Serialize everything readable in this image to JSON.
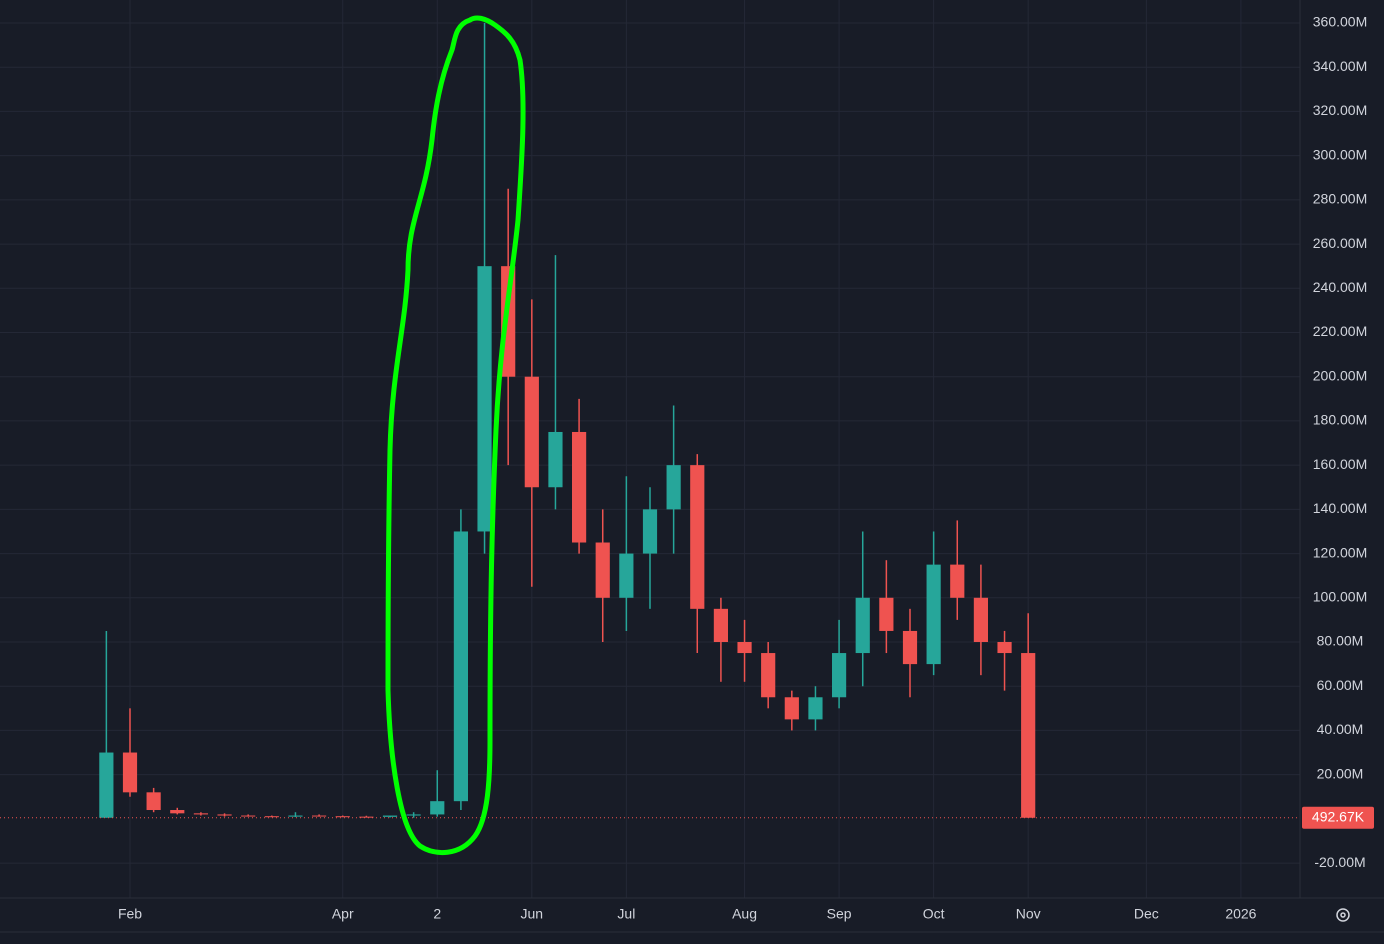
{
  "chart_data": {
    "type": "candlestick",
    "categories": [
      null,
      null,
      null,
      null,
      null,
      "Feb",
      null,
      null,
      null,
      null,
      null,
      null,
      null,
      null,
      "Apr",
      null,
      null,
      null,
      "2",
      null,
      null,
      null,
      "Jun",
      null,
      null,
      null,
      "Jul",
      null,
      null,
      null,
      null,
      "Aug",
      null,
      null,
      null,
      "Sep",
      null,
      null,
      null,
      "Oct",
      null,
      null,
      null,
      "Nov",
      null,
      null,
      null,
      null,
      "Dec",
      null,
      null,
      null,
      "2026",
      null,
      null
    ],
    "open": [
      null,
      null,
      null,
      null,
      0.5,
      30,
      12,
      4,
      2.5,
      2,
      1.5,
      1.2,
      1,
      1.5,
      1.2,
      1,
      0.9,
      1.5,
      2,
      8,
      130,
      250,
      200,
      150,
      175,
      125,
      100,
      120,
      140,
      160,
      95,
      80,
      75,
      55,
      45,
      55,
      75,
      100,
      85,
      70,
      115,
      100,
      80,
      75,
      null,
      null,
      null,
      null,
      null,
      null,
      null,
      null,
      null,
      null,
      null
    ],
    "high": [
      null,
      null,
      null,
      null,
      85,
      50,
      14,
      5,
      3,
      2.5,
      2,
      1.5,
      3,
      2,
      1.5,
      1.4,
      1.2,
      3,
      22,
      140,
      360,
      285,
      235,
      255,
      190,
      140,
      155,
      150,
      187,
      165,
      100,
      90,
      80,
      58,
      60,
      90,
      130,
      117,
      95,
      130,
      135,
      115,
      85,
      93,
      null,
      null,
      null,
      null,
      null,
      null,
      null,
      null,
      null,
      null,
      null
    ],
    "low": [
      null,
      null,
      null,
      null,
      0.5,
      10,
      3,
      2,
      1.5,
      1,
      1,
      0.8,
      0.8,
      1,
      0.8,
      0.8,
      0.6,
      0.5,
      1,
      4,
      120,
      160,
      105,
      140,
      120,
      80,
      85,
      95,
      120,
      75,
      62,
      62,
      50,
      40,
      40,
      50,
      60,
      75,
      55,
      65,
      90,
      65,
      58,
      0.49,
      null,
      null,
      null,
      null,
      null,
      null,
      null,
      null,
      null,
      null,
      null
    ],
    "close": [
      null,
      null,
      null,
      null,
      30,
      12,
      4,
      2.5,
      2,
      1.5,
      1.2,
      1,
      1.5,
      1.2,
      1,
      0.9,
      1.5,
      2,
      8,
      130,
      250,
      200,
      150,
      175,
      125,
      100,
      120,
      140,
      160,
      95,
      80,
      75,
      55,
      45,
      55,
      75,
      100,
      85,
      70,
      115,
      100,
      80,
      75,
      0.49267,
      null,
      null,
      null,
      null,
      null,
      null,
      null,
      null,
      null,
      null,
      null
    ],
    "up_color": "#26a69a",
    "down_color": "#ef5350",
    "ylim": [
      -35.8,
      370.4
    ],
    "yticks": [
      {
        "value": -20,
        "label": "-20.00M"
      },
      {
        "value": 20,
        "label": "20.00M"
      },
      {
        "value": 40,
        "label": "40.00M"
      },
      {
        "value": 60,
        "label": "60.00M"
      },
      {
        "value": 80,
        "label": "80.00M"
      },
      {
        "value": 100,
        "label": "100.00M"
      },
      {
        "value": 120,
        "label": "120.00M"
      },
      {
        "value": 140,
        "label": "140.00M"
      },
      {
        "value": 160,
        "label": "160.00M"
      },
      {
        "value": 180,
        "label": "180.00M"
      },
      {
        "value": 200,
        "label": "200.00M"
      },
      {
        "value": 220,
        "label": "220.00M"
      },
      {
        "value": 240,
        "label": "240.00M"
      },
      {
        "value": 260,
        "label": "260.00M"
      },
      {
        "value": 280,
        "label": "280.00M"
      },
      {
        "value": 300,
        "label": "300.00M"
      },
      {
        "value": 320,
        "label": "320.00M"
      },
      {
        "value": 340,
        "label": "340.00M"
      },
      {
        "value": 360,
        "label": "360.00M"
      }
    ],
    "last_price": {
      "value": 0.49267,
      "label": "492.67K"
    },
    "grid": true
  }
}
